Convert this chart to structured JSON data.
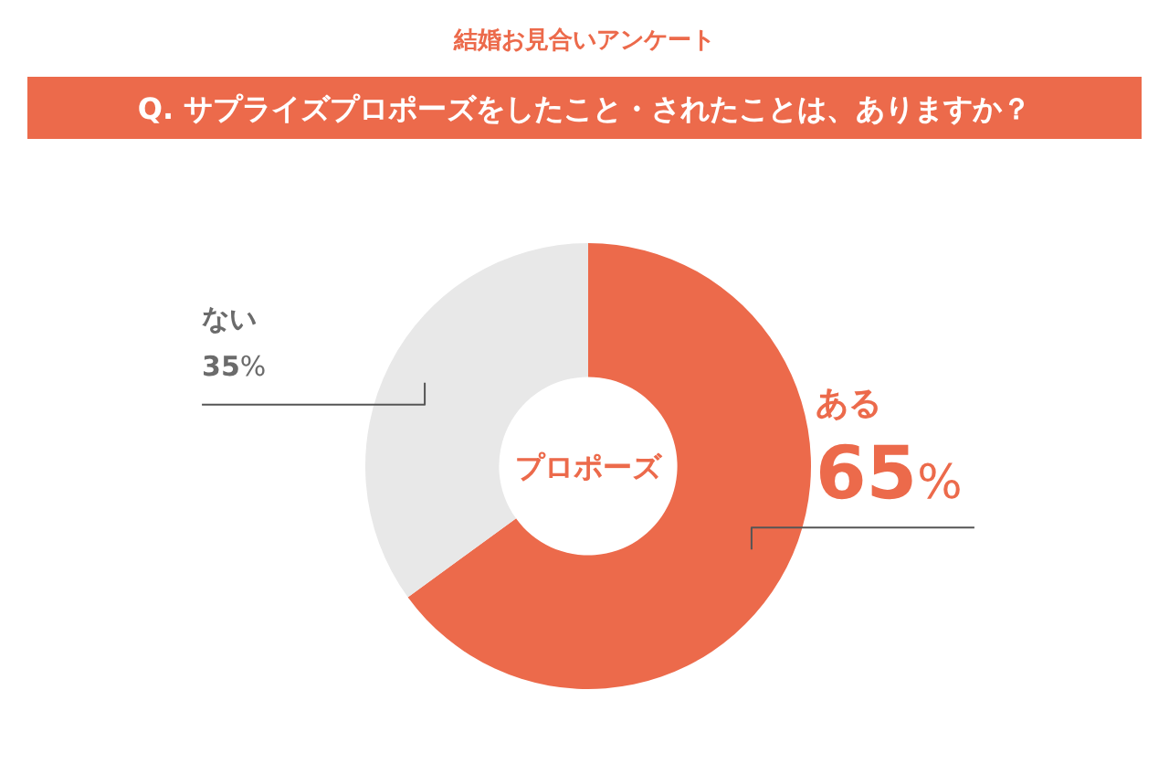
{
  "chart_data": {
    "type": "donut",
    "title": "結婚お見合いアンケート",
    "subtitle": "Q. サプライズプロポーズをしたこと・されたことは、ありますか？",
    "categories": [
      "ある",
      "ない"
    ],
    "values": [
      65,
      35
    ],
    "colors": [
      "#ec6a4b",
      "#e8e8e8"
    ],
    "annotations": [
      "プロポーズ"
    ],
    "value_labels": [
      "65%",
      "35%"
    ]
  }
}
